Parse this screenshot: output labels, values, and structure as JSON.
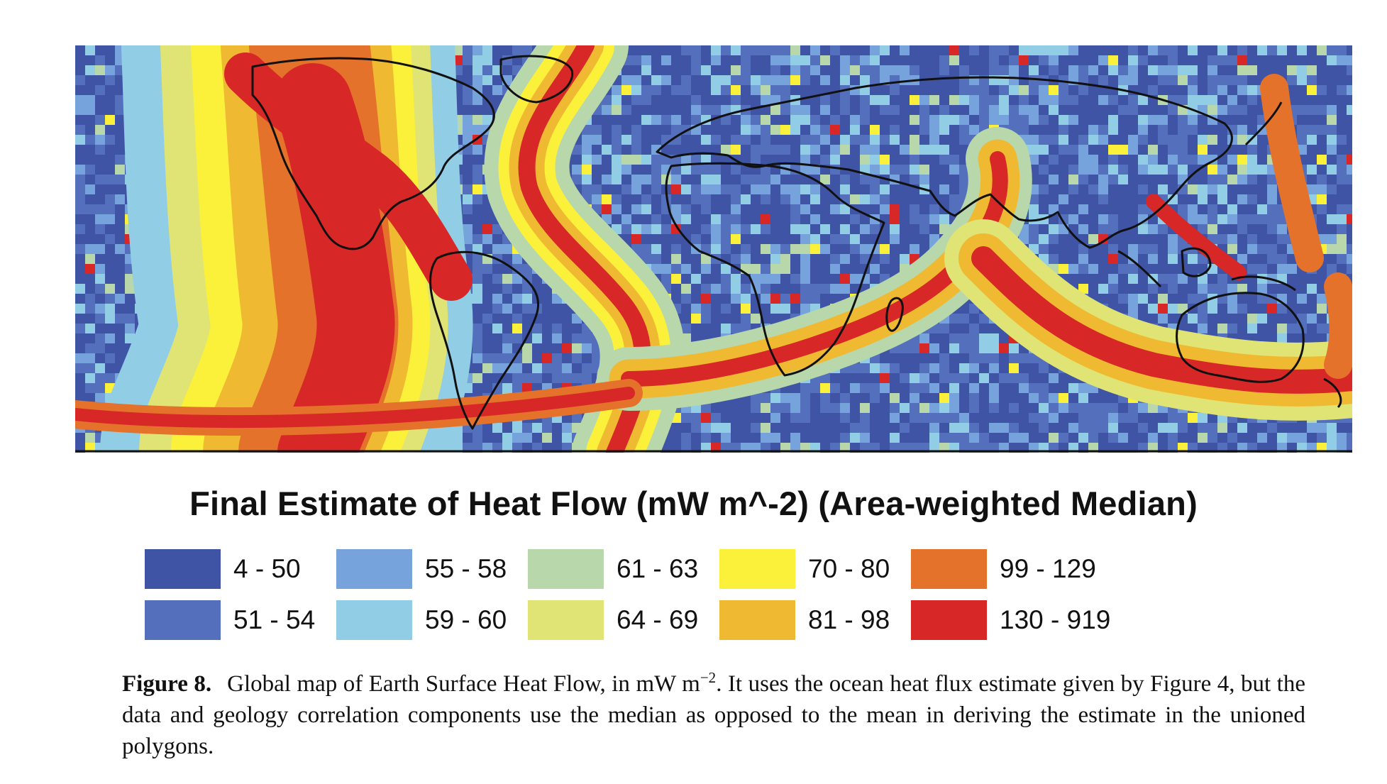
{
  "map": {
    "title": "Final Estimate of Heat Flow (mW m^-2) (Area-weighted Median)",
    "legend": [
      {
        "label": "4 - 50",
        "color": "#3f54a4"
      },
      {
        "label": "51 - 54",
        "color": "#5470bd"
      },
      {
        "label": "55 - 58",
        "color": "#76a3db"
      },
      {
        "label": "59 - 60",
        "color": "#92cde6"
      },
      {
        "label": "61 - 63",
        "color": "#b8d8ac"
      },
      {
        "label": "64 - 69",
        "color": "#dfe474"
      },
      {
        "label": "70 - 80",
        "color": "#fbf13a"
      },
      {
        "label": "81 - 98",
        "color": "#f0b932"
      },
      {
        "label": "99 - 129",
        "color": "#e4722b"
      },
      {
        "label": "130 - 919",
        "color": "#d82727"
      }
    ]
  },
  "caption": {
    "label": "Figure 8.",
    "text_before_sup": "Global map of Earth Surface Heat Flow, in mW m",
    "superscript": "−2",
    "text_after_sup": ". It uses the ocean heat flux estimate given by Figure 4, but the data and geology correlation components use the median as opposed to the mean in deriving the estimate in the unioned polygons."
  }
}
